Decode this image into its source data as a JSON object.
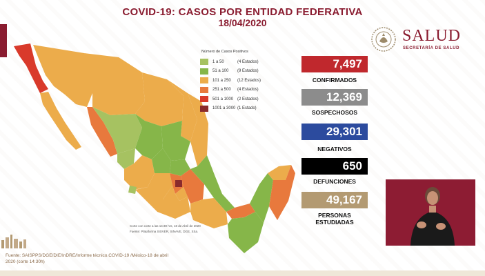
{
  "header": {
    "title": "COVID-19: CASOS POR ENTIDAD FEDERATIVA",
    "date": "18/04/2020"
  },
  "logo": {
    "word": "SALUD",
    "subtitle": "SECRETARÍA DE SALUD"
  },
  "legend": {
    "title": "Número de Casos Positivos",
    "items": [
      {
        "range": "1 a 50",
        "count": "(4 Estados)",
        "color": "#a6c261"
      },
      {
        "range": "51 a 100",
        "count": "(9 Estados)",
        "color": "#86b649"
      },
      {
        "range": "101 a 250",
        "count": "(12 Estados)",
        "color": "#ecac4b"
      },
      {
        "range": "251 a 500",
        "count": "(4 Estados)",
        "color": "#e8793d"
      },
      {
        "range": "501 a 1000",
        "count": "(2 Estados)",
        "color": "#d93a2b"
      },
      {
        "range": "1001 a 3000",
        "count": "(1 Estado)",
        "color": "#8a2a2c"
      }
    ]
  },
  "map": {
    "footnote_1": "Corte con corte a las 14:30 hrs, 18 de Abril de 2020",
    "footnote_2": "Fuente: Plataforma SISVER, SINAVE, DGE, SSa."
  },
  "stats": [
    {
      "value": "7,497",
      "label": "CONFIRMADOS",
      "color": "#c0282d"
    },
    {
      "value": "12,369",
      "label": "SOSPECHOSOS",
      "color": "#8c8c8c"
    },
    {
      "value": "29,301",
      "label": "NEGATIVOS",
      "color": "#2c4b9e"
    },
    {
      "value": "650",
      "label": "DEFUNCIONES",
      "color": "#000000"
    },
    {
      "value": "49,167",
      "label": "PERSONAS ESTUDIADAS",
      "color": "#b39a72"
    }
  ],
  "sources": {
    "line1": "Fuente: SAISPPS/DGE/DIE/InDRE/Informe técnico.COVID-19 /México-18 de abril",
    "line2": "2020 (corte 14:30h)"
  }
}
